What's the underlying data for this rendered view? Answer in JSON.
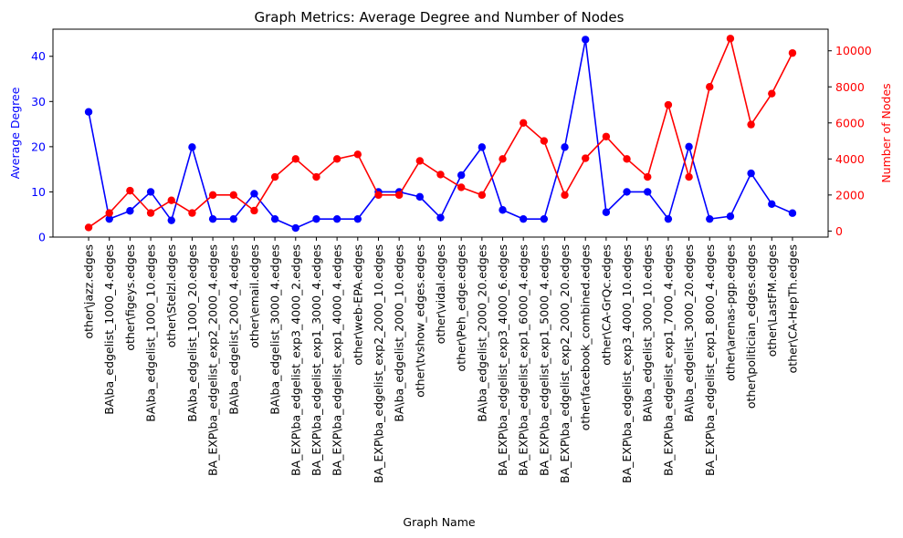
{
  "chart_data": {
    "type": "line",
    "title": "Graph Metrics: Average Degree and Number of Nodes",
    "xlabel": "Graph Name",
    "categories": [
      "other\\jazz.edges",
      "BA\\ba_edgelist_1000_4.edges",
      "other\\figeys.edges",
      "BA\\ba_edgelist_1000_10.edges",
      "other\\Stelzl.edges",
      "BA\\ba_edgelist_1000_20.edges",
      "BA_EXP\\ba_edgelist_exp2_2000_4.edges",
      "BA\\ba_edgelist_2000_4.edges",
      "other\\email.edges",
      "BA\\ba_edgelist_3000_4.edges",
      "BA_EXP\\ba_edgelist_exp3_4000_2.edges",
      "BA_EXP\\ba_edgelist_exp1_3000_4.edges",
      "BA_EXP\\ba_edgelist_exp1_4000_4.edges",
      "other\\web-EPA.edges",
      "BA_EXP\\ba_edgelist_exp2_2000_10.edges",
      "BA\\ba_edgelist_2000_10.edges",
      "other\\tvshow_edges.edges",
      "other\\vidal.edges",
      "other\\Peh_edge.edges",
      "BA\\ba_edgelist_2000_20.edges",
      "BA_EXP\\ba_edgelist_exp3_4000_6.edges",
      "BA_EXP\\ba_edgelist_exp1_6000_4.edges",
      "BA_EXP\\ba_edgelist_exp1_5000_4.edges",
      "BA_EXP\\ba_edgelist_exp2_2000_20.edges",
      "other\\facebook_combined.edges",
      "other\\CA-GrQc.edges",
      "BA_EXP\\ba_edgelist_exp3_4000_10.edges",
      "BA\\ba_edgelist_3000_10.edges",
      "BA_EXP\\ba_edgelist_exp1_7000_4.edges",
      "BA\\ba_edgelist_3000_20.edges",
      "BA_EXP\\ba_edgelist_exp1_8000_4.edges",
      "other\\arenas-pgp.edges",
      "other\\politician_edges.edges",
      "other\\LastFM.edges",
      "other\\CA-HepTh.edges"
    ],
    "series": [
      {
        "axis": "left",
        "color": "#0000ff",
        "values": [
          27.7,
          4.0,
          5.8,
          10.0,
          3.7,
          19.9,
          4.0,
          4.0,
          9.6,
          4.0,
          2.0,
          4.0,
          4.0,
          4.0,
          10.0,
          10.0,
          8.9,
          4.3,
          13.7,
          19.9,
          6.0,
          4.0,
          4.0,
          19.9,
          43.7,
          5.5,
          10.0,
          10.0,
          4.0,
          20.0,
          4.0,
          4.6,
          14.1,
          7.3,
          5.3
        ]
      },
      {
        "axis": "right",
        "color": "#ff0000",
        "values": [
          198,
          1000,
          2239,
          1000,
          1706,
          1000,
          2000,
          2000,
          1133,
          3000,
          4000,
          3000,
          4000,
          4253,
          2000,
          2000,
          3892,
          3133,
          2426,
          2000,
          4000,
          6000,
          5000,
          2000,
          4039,
          5242,
          4000,
          3000,
          7000,
          3000,
          8000,
          10680,
          5908,
          7624,
          9877
        ]
      }
    ],
    "y_left": {
      "label": "Average Degree",
      "ylim": [
        0,
        46
      ],
      "ticks": [
        0,
        10,
        20,
        30,
        40
      ],
      "color": "#0000ff"
    },
    "y_right": {
      "label": "Number of Nodes",
      "ylim": [
        -335,
        11200
      ],
      "ticks": [
        0,
        2000,
        4000,
        6000,
        8000,
        10000
      ],
      "color": "#ff0000"
    },
    "grid": false,
    "legend": "none"
  }
}
